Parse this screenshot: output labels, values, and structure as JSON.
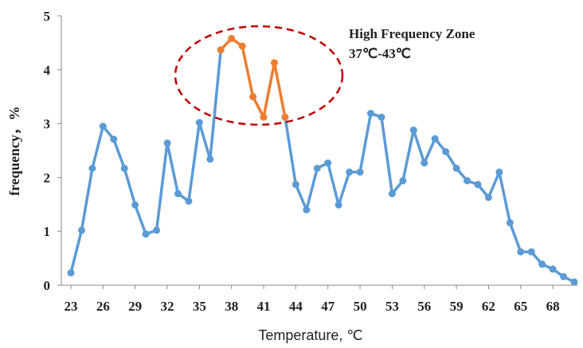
{
  "chart_data": {
    "type": "line",
    "xlabel": "Temperature, ℃",
    "ylabel": "frequency，%",
    "ylim": [
      0,
      5
    ],
    "xlim": [
      23,
      70
    ],
    "x_ticks": [
      23,
      26,
      29,
      32,
      35,
      38,
      41,
      44,
      47,
      50,
      53,
      56,
      59,
      62,
      65,
      68
    ],
    "y_ticks": [
      0,
      1,
      2,
      3,
      4,
      5
    ],
    "grid": false,
    "colors": {
      "main": "#5b9bd5",
      "highlight": "#ed7d31",
      "ellipse": "#c00000",
      "axis": "#888888"
    },
    "series": [
      {
        "x": [
          23,
          24,
          25,
          26,
          27,
          28,
          29,
          30,
          31,
          32,
          33,
          34,
          35,
          36,
          37,
          38,
          39,
          40,
          41,
          42,
          43,
          44,
          45,
          46,
          47,
          48,
          49,
          50,
          51,
          52,
          53,
          54,
          55,
          56,
          57,
          58,
          59,
          60,
          61,
          62,
          63,
          64,
          65,
          66,
          67,
          68,
          69,
          70
        ],
        "values": [
          0.23,
          1.02,
          2.17,
          2.95,
          2.71,
          2.17,
          1.49,
          0.95,
          1.02,
          2.64,
          1.7,
          1.56,
          3.02,
          2.34,
          4.37,
          4.58,
          4.44,
          3.5,
          3.12,
          4.13,
          3.12,
          1.87,
          1.4,
          2.17,
          2.27,
          1.49,
          2.1,
          2.1,
          3.19,
          3.12,
          1.7,
          1.94,
          2.88,
          2.27,
          2.72,
          2.48,
          2.17,
          1.94,
          1.87,
          1.63,
          2.1,
          1.16,
          0.62,
          0.62,
          0.39,
          0.3,
          0.16,
          0.06
        ]
      }
    ],
    "highlight_range": [
      37,
      43
    ],
    "annotations": [
      {
        "text": "High Frequency Zone",
        "placement": "top-right of highlighted peak"
      },
      {
        "text": "37℃-43℃",
        "placement": "below zone label"
      }
    ]
  }
}
